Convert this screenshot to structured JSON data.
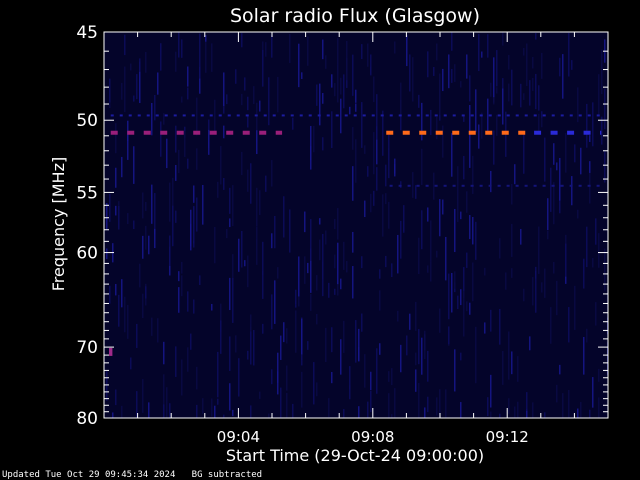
{
  "chart_data": {
    "type": "heatmap",
    "title": "Solar radio Flux (Glasgow)",
    "xlabel": "Start Time (29-Oct-24 09:00:00)",
    "ylabel": "Frequency [MHz]",
    "x_range_minutes": [
      0,
      15
    ],
    "y_range_mhz": [
      45,
      80
    ],
    "x_ticks": [
      {
        "minute": 4,
        "label": "09:04"
      },
      {
        "minute": 8,
        "label": "09:08"
      },
      {
        "minute": 12,
        "label": "09:12"
      }
    ],
    "y_ticks": [
      {
        "mhz": 45,
        "label": "45"
      },
      {
        "mhz": 50,
        "label": "50"
      },
      {
        "mhz": 55,
        "label": "55"
      },
      {
        "mhz": 60,
        "label": "60"
      },
      {
        "mhz": 70,
        "label": "70"
      },
      {
        "mhz": 80,
        "label": "80"
      }
    ],
    "background_subtracted": true,
    "features": [
      {
        "name": "interference-band",
        "mhz": 50.8,
        "minute_start": 0.2,
        "minute_end": 5.3,
        "color": "#9a1f7a"
      },
      {
        "name": "interference-band",
        "mhz": 50.8,
        "minute_start": 8.4,
        "minute_end": 12.8,
        "color": "#ff6a1a"
      },
      {
        "name": "interference-band",
        "mhz": 50.8,
        "minute_start": 12.8,
        "minute_end": 14.8,
        "color": "#2a2ad8"
      },
      {
        "name": "faint-band",
        "mhz": 49.7,
        "minute_start": 0.2,
        "minute_end": 14.8,
        "color": "#1c1ca0"
      },
      {
        "name": "faint-band",
        "mhz": 54.5,
        "minute_start": 8.5,
        "minute_end": 14.8,
        "color": "#14147a"
      },
      {
        "name": "spike",
        "mhz": 70.6,
        "minute_start": 0.15,
        "minute_end": 0.25,
        "color": "#a02a8a"
      }
    ]
  },
  "colors": {
    "background": "#000000",
    "plot_background": "#04042a",
    "frame": "#ffffff",
    "text": "#ffffff"
  },
  "footer": {
    "updated": "Updated Tue Oct 29 09:45:34 2024",
    "bg_note": "BG subtracted"
  }
}
